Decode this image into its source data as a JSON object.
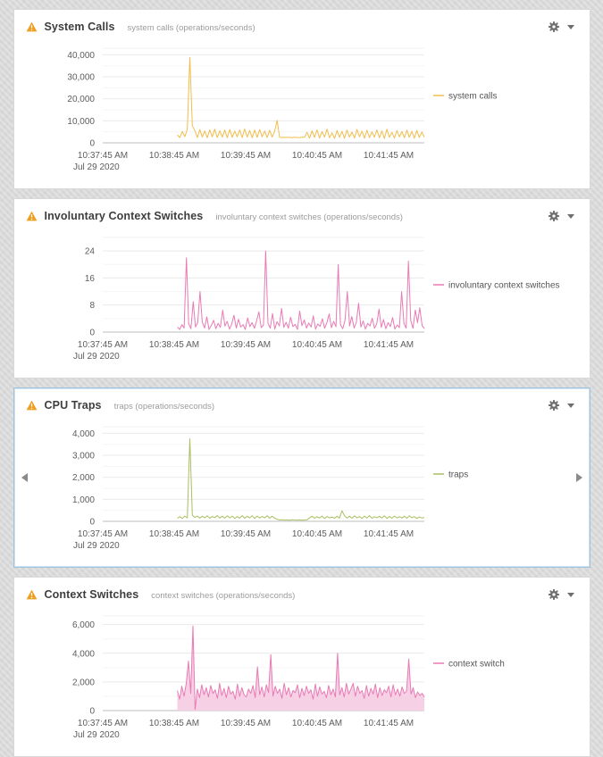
{
  "ui": {
    "selected_panel_index": 2,
    "panel_background": "#ffffff",
    "page_background": "#d9d9d9",
    "selected_border_color": "#9fc4de",
    "warning_icon_color": "#eda023",
    "gear_icon_color": "#6e6e6e"
  },
  "chart_data": [
    {
      "type": "line",
      "title": "System Calls",
      "subtitle": "system calls (operations/seconds)",
      "x_ticks": [
        "10:37:45 AM",
        "10:38:45 AM",
        "10:39:45 AM",
        "10:40:45 AM",
        "10:41:45 AM"
      ],
      "x_sub_label": "Jul 29 2020",
      "y_ticks": [
        0,
        10000,
        20000,
        30000,
        40000
      ],
      "y_tick_labels": [
        "0",
        "10,000",
        "20,000",
        "30,000",
        "40,000"
      ],
      "ylim": [
        0,
        43000
      ],
      "grid": true,
      "legend_position": "right",
      "area_fill": false,
      "data_start_frac": 0.232,
      "series": [
        {
          "name": "system calls",
          "color": "#f1bd4c",
          "values": [
            3600,
            2400,
            5200,
            2800,
            6100,
            38800,
            7800,
            5600,
            2400,
            6000,
            2600,
            5400,
            2300,
            5900,
            2700,
            6200,
            2400,
            5500,
            2600,
            5800,
            2300,
            6100,
            2500,
            5300,
            2700,
            5900,
            2400,
            6300,
            2600,
            5600,
            2300,
            5800,
            2500,
            6000,
            2700,
            5400,
            2400,
            5700,
            2600,
            5200,
            10200,
            2500,
            2400,
            2550,
            2450,
            2500,
            2350,
            2500,
            2450,
            2400,
            2550,
            2500,
            4800,
            2100,
            5400,
            2500,
            5900,
            2200,
            5100,
            2600,
            6200,
            2300,
            4600,
            2000,
            5600,
            2500,
            5200,
            2100,
            5800,
            2600,
            4900,
            2200,
            6100,
            2700,
            5300,
            2100,
            5700,
            2400,
            5000,
            2600,
            5900,
            2300,
            5400,
            2000,
            6200,
            2500,
            4800,
            2200,
            5500,
            2700,
            5100,
            2300,
            5800,
            2500,
            5200,
            2100,
            5600,
            2400,
            4900,
            2600
          ]
        }
      ]
    },
    {
      "type": "line",
      "title": "Involuntary Context Switches",
      "subtitle": "involuntary context switches (operations/seconds)",
      "x_ticks": [
        "10:37:45 AM",
        "10:38:45 AM",
        "10:39:45 AM",
        "10:40:45 AM",
        "10:41:45 AM"
      ],
      "x_sub_label": "Jul 29 2020",
      "y_ticks": [
        0,
        8,
        16,
        24
      ],
      "y_tick_labels": [
        "0",
        "8",
        "16",
        "24"
      ],
      "ylim": [
        0,
        28
      ],
      "grid": true,
      "legend_position": "right",
      "area_fill": false,
      "data_start_frac": 0.232,
      "series": [
        {
          "name": "involuntary context switches",
          "color": "#e87bb4",
          "values": [
            1.5,
            0.8,
            2.2,
            1.2,
            22,
            2.5,
            1,
            9,
            1.5,
            2.8,
            12,
            3,
            1.2,
            4.5,
            0.8,
            2,
            3.5,
            1,
            2.6,
            1.4,
            6.5,
            1.8,
            3.2,
            0.9,
            2.4,
            5,
            1.2,
            3.8,
            1.5,
            2.2,
            0.8,
            4.2,
            1.6,
            2.8,
            1.1,
            3.4,
            6,
            1.3,
            2.1,
            24,
            2.6,
            1.2,
            5.5,
            0.9,
            3.1,
            1.8,
            7,
            1.4,
            2.9,
            1.1,
            4.4,
            1.6,
            2.3,
            0.8,
            6.2,
            1.9,
            3.6,
            1.2,
            2.7,
            1.5,
            4.8,
            0.9,
            2.4,
            1.7,
            3.9,
            1.1,
            2.8,
            5.4,
            1.3,
            3.2,
            1.6,
            20,
            2.2,
            1,
            3.5,
            12,
            1.8,
            4.6,
            1.2,
            2.9,
            8.5,
            1.5,
            3.3,
            0.9,
            2.6,
            1.8,
            4.1,
            1.1,
            2.4,
            6.8,
            1.4,
            3.7,
            1,
            2.8,
            1.6,
            4.3,
            0.9,
            2.1,
            1.3,
            12,
            2.5,
            1.2,
            21,
            3.4,
            1.1,
            6.5,
            2.8,
            7.2,
            1.9,
            1
          ]
        }
      ]
    },
    {
      "type": "line",
      "title": "CPU Traps",
      "subtitle": "traps (operations/seconds)",
      "x_ticks": [
        "10:37:45 AM",
        "10:38:45 AM",
        "10:39:45 AM",
        "10:40:45 AM",
        "10:41:45 AM"
      ],
      "x_sub_label": "Jul 29 2020",
      "y_ticks": [
        0,
        1000,
        2000,
        3000,
        4000
      ],
      "y_tick_labels": [
        "0",
        "1,000",
        "2,000",
        "3,000",
        "4,000"
      ],
      "ylim": [
        0,
        4300
      ],
      "grid": true,
      "legend_position": "right",
      "area_fill": false,
      "data_start_frac": 0.232,
      "series": [
        {
          "name": "traps",
          "color": "#a9bf62",
          "values": [
            140,
            210,
            130,
            240,
            160,
            3750,
            280,
            180,
            240,
            150,
            230,
            160,
            250,
            140,
            220,
            170,
            260,
            150,
            230,
            140,
            250,
            160,
            240,
            130,
            220,
            150,
            260,
            140,
            230,
            160,
            250,
            130,
            240,
            150,
            220,
            160,
            260,
            140,
            230,
            150,
            90,
            60,
            70,
            55,
            65,
            50,
            70,
            60,
            55,
            65,
            50,
            60,
            70,
            160,
            230,
            140,
            210,
            150,
            240,
            130,
            220,
            160,
            200,
            140,
            230,
            150,
            480,
            260,
            150,
            230,
            140,
            250,
            160,
            220,
            130,
            240,
            150,
            260,
            140,
            210,
            160,
            230,
            150,
            250,
            130,
            220,
            140,
            240,
            160,
            210,
            150,
            230,
            140,
            250,
            160,
            220,
            130,
            200,
            150,
            170
          ]
        }
      ]
    },
    {
      "type": "area",
      "title": "Context Switches",
      "subtitle": "context switches (operations/seconds)",
      "x_ticks": [
        "10:37:45 AM",
        "10:38:45 AM",
        "10:39:45 AM",
        "10:40:45 AM",
        "10:41:45 AM"
      ],
      "x_sub_label": "Jul 29 2020",
      "y_ticks": [
        0,
        2000,
        4000,
        6000
      ],
      "y_tick_labels": [
        "0",
        "2,000",
        "4,000",
        "6,000"
      ],
      "ylim": [
        0,
        6600
      ],
      "grid": true,
      "legend_position": "right",
      "area_fill": true,
      "data_start_frac": 0.232,
      "series": [
        {
          "name": "context switch",
          "color": "#e87bb4",
          "fill_color": "#f6d0e5",
          "values": [
            1400,
            800,
            1700,
            1000,
            1900,
            3450,
            1200,
            5900,
            80,
            1500,
            900,
            1800,
            1100,
            1600,
            950,
            1750,
            1200,
            1450,
            850,
            1900,
            1050,
            1550,
            900,
            1700,
            1150,
            1350,
            800,
            1850,
            1000,
            1600,
            1100,
            950,
            1500,
            1200,
            1750,
            900,
            3050,
            1100,
            1650,
            950,
            1800,
            1250,
            3900,
            1000,
            1700,
            1200,
            1500,
            850,
            1900,
            1100,
            1600,
            950,
            1400,
            1250,
            1800,
            900,
            1550,
            1050,
            1700,
            1200,
            1450,
            800,
            1850,
            1000,
            1650,
            1150,
            1350,
            900,
            1750,
            1100,
            1500,
            950,
            4000,
            1100,
            1600,
            950,
            1900,
            1150,
            1500,
            1900,
            1000,
            1700,
            1200,
            1400,
            850,
            1750,
            1000,
            1550,
            1150,
            1850,
            900,
            1600,
            1050,
            1450,
            1250,
            1700,
            950,
            1800,
            1100,
            1500,
            1000,
            1650,
            1200,
            1350,
            3600,
            1150,
            1600,
            900,
            1300,
            1050,
            1200,
            950
          ]
        }
      ]
    }
  ]
}
